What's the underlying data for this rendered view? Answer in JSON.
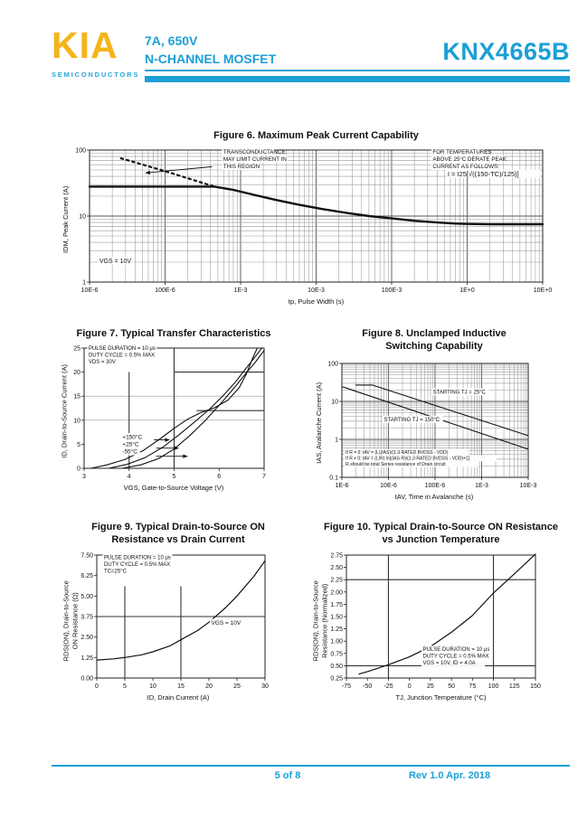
{
  "header": {
    "logo": "KIA",
    "logo_sub": "SEMICONDUCTORS",
    "spec_line1": "7A, 650V",
    "spec_line2": "N-CHANNEL MOSFET",
    "part_number": "KNX4665B"
  },
  "colors": {
    "accent_cyan": "#1B9FD6",
    "logo_yellow": "#F5B41A",
    "chart_ink": "#111111"
  },
  "footer": {
    "page": "5 of 8",
    "rev": "Rev 1.0 Apr. 2018"
  },
  "chart_data": [
    {
      "name": "fig6",
      "type": "line",
      "title": "Figure 6. Maximum Peak Current Capability",
      "xlabel": "tp, Pulse Width (s)",
      "ylabel": "IDM, Peak Current (A)",
      "xscale": "log",
      "yscale": "log",
      "xlim": [
        1e-05,
        10
      ],
      "ylim": [
        1,
        100
      ],
      "log_grid": true,
      "margins": {
        "l": 30,
        "r": 14,
        "t": 6,
        "b": 16
      },
      "xticks": [
        {
          "v": 1e-05,
          "label": "10E-6"
        },
        {
          "v": 0.0001,
          "label": "100E-6"
        },
        {
          "v": 0.001,
          "label": "1E-3"
        },
        {
          "v": 0.01,
          "label": "10E-3"
        },
        {
          "v": 0.1,
          "label": "100E-3"
        },
        {
          "v": 1,
          "label": "1E+0"
        },
        {
          "v": 10,
          "label": "10E+0"
        }
      ],
      "yticks": [
        {
          "v": 1,
          "label": "1"
        },
        {
          "v": 10,
          "label": "10"
        },
        {
          "v": 100,
          "label": "100"
        }
      ],
      "series": [
        {
          "name": "peak-current-limit",
          "width": 2.4,
          "points": [
            [
              1e-05,
              28
            ],
            [
              0.00045,
              28
            ],
            [
              0.0008,
              25
            ],
            [
              0.0015,
              21
            ],
            [
              0.003,
              17.5
            ],
            [
              0.006,
              14.8
            ],
            [
              0.012,
              12.8
            ],
            [
              0.025,
              11.2
            ],
            [
              0.05,
              10
            ],
            [
              0.1,
              9.2
            ],
            [
              0.2,
              8.5
            ],
            [
              0.4,
              8.0
            ],
            [
              0.7,
              7.7
            ],
            [
              1,
              7.6
            ],
            [
              2,
              7.5
            ],
            [
              10,
              7.5
            ]
          ]
        },
        {
          "name": "transconductance-limit",
          "width": 2.2,
          "dash": "2.5 4",
          "points": [
            [
              2.6e-05,
              75
            ],
            [
              0.0001,
              48
            ],
            [
              0.00045,
              28
            ]
          ]
        }
      ],
      "annotations": [
        {
          "x": 0.00059,
          "y": 88,
          "size": 6.2,
          "lh": 8,
          "lines": [
            "TRANSCONDUCTANCE",
            "MAY LIMIT CURRENT IN",
            "THIS REGION"
          ]
        },
        {
          "x": 0.35,
          "y": 88,
          "size": 6.2,
          "lh": 8,
          "lines": [
            "FOR TEMPERATURES",
            "ABOVE 25°C DERATE PEAK",
            "CURRENT AS FOLLOWS:"
          ]
        },
        {
          "x": 0.55,
          "y": 40,
          "size": 7.5,
          "lh": 9,
          "lines": [
            "I = I25[√((150-TC)/125)]"
          ]
        },
        {
          "x": 1.35e-05,
          "y": 1.95,
          "size": 7,
          "lh": 8,
          "lines": [
            "VGS = 10V"
          ]
        }
      ],
      "arrows": [
        {
          "x1": 0.00042,
          "y1": 56,
          "x2": 5.5e-05,
          "y2": 45
        }
      ]
    },
    {
      "name": "fig7",
      "type": "line",
      "title": "Figure 7. Typical Transfer Characteristics",
      "xlabel": "VGS, Gate-to-Source Voltage (V)",
      "ylabel": "ID, Drain-to-Source Current (A)",
      "xscale": "linear",
      "yscale": "linear",
      "xlim": [
        3,
        7
      ],
      "ylim": [
        0,
        25
      ],
      "log_grid": false,
      "margins": {
        "l": 26,
        "r": 10,
        "t": 6,
        "b": 16
      },
      "xticks": [
        {
          "v": 3,
          "label": "3"
        },
        {
          "v": 4,
          "label": "4"
        },
        {
          "v": 5,
          "label": "5"
        },
        {
          "v": 6,
          "label": "6"
        },
        {
          "v": 7,
          "label": "7"
        }
      ],
      "yticks": [
        {
          "v": 0,
          "label": "0"
        },
        {
          "v": 5,
          "label": "5"
        },
        {
          "v": 10,
          "label": "10"
        },
        {
          "v": 15,
          "label": "15"
        },
        {
          "v": 20,
          "label": "20"
        },
        {
          "v": 25,
          "label": "25"
        }
      ],
      "extra_lines": [
        {
          "x1": 3,
          "y1": 10,
          "x2": 7,
          "y2": 10,
          "w": "light"
        },
        {
          "x1": 3,
          "y1": 15,
          "x2": 7,
          "y2": 15,
          "w": "light"
        },
        {
          "x1": 5,
          "y1": 20,
          "x2": 7,
          "y2": 20,
          "w": "dark"
        },
        {
          "x1": 5.5,
          "y1": 12,
          "x2": 7,
          "y2": 12,
          "w": "dark"
        },
        {
          "x1": 4,
          "y1": 0,
          "x2": 4,
          "y2": 20,
          "w": "dark"
        },
        {
          "x1": 5,
          "y1": 0,
          "x2": 5,
          "y2": 25,
          "w": "dark"
        }
      ],
      "series": [
        {
          "name": "curve-150C",
          "width": 1.1,
          "points": [
            [
              3.15,
              0
            ],
            [
              3.5,
              0.7
            ],
            [
              3.9,
              1.8
            ],
            [
              4.3,
              3.6
            ],
            [
              4.7,
              6.2
            ],
            [
              5.0,
              8.3
            ],
            [
              5.3,
              10.2
            ],
            [
              5.6,
              11.6
            ],
            [
              5.9,
              12.6
            ],
            [
              6.2,
              14.2
            ],
            [
              6.45,
              16.8
            ],
            [
              6.6,
              19.5
            ],
            [
              6.75,
              23
            ],
            [
              6.85,
              25
            ]
          ]
        },
        {
          "name": "curve-25C",
          "width": 1.1,
          "points": [
            [
              3.55,
              0
            ],
            [
              3.95,
              0.8
            ],
            [
              4.35,
              2.2
            ],
            [
              4.75,
              4.4
            ],
            [
              5.1,
              6.9
            ],
            [
              5.45,
              9.6
            ],
            [
              5.8,
              12.4
            ],
            [
              6.1,
              15.2
            ],
            [
              6.35,
              17.8
            ],
            [
              6.55,
              20.2
            ],
            [
              6.75,
              22.6
            ],
            [
              6.95,
              25
            ]
          ]
        },
        {
          "name": "curve-minus55C",
          "width": 1.1,
          "points": [
            [
              3.85,
              0
            ],
            [
              4.25,
              0.7
            ],
            [
              4.65,
              2.0
            ],
            [
              5.0,
              4.0
            ],
            [
              5.35,
              6.8
            ],
            [
              5.7,
              10.0
            ],
            [
              6.05,
              13.6
            ],
            [
              6.35,
              16.9
            ],
            [
              6.6,
              19.8
            ],
            [
              6.8,
              22
            ],
            [
              7.0,
              24.5
            ]
          ]
        }
      ],
      "annotations": [
        {
          "x": 3.1,
          "y": 24.6,
          "size": 6,
          "lh": 7.5,
          "lines": [
            "PULSE DURATION = 10 μs",
            "DUTY CYCLE = 0.5% MAX",
            "VDS = 30V"
          ]
        },
        {
          "x": 3.85,
          "y": 6.1,
          "size": 6.5,
          "lh": 8,
          "lines": [
            "+150°C",
            "+25°C",
            "-55°C"
          ]
        }
      ],
      "arrows": [
        {
          "x1": 4.55,
          "y1": 5.9,
          "x2": 4.9,
          "y2": 5.9
        },
        {
          "x1": 4.6,
          "y1": 4.2,
          "x2": 5.1,
          "y2": 4.2
        },
        {
          "x1": 4.6,
          "y1": 2.5,
          "x2": 5.3,
          "y2": 2.5
        }
      ]
    },
    {
      "name": "fig8",
      "type": "line",
      "title": "Figure 8.    Unclamped Inductive\nSwitching Capability",
      "xlabel": "tAV, Time in Avalanche (s)",
      "ylabel": "IAS, Avalanche Current (A)",
      "xscale": "log",
      "yscale": "log",
      "xlim": [
        1e-06,
        0.01
      ],
      "ylim": [
        0.1,
        100
      ],
      "log_grid": true,
      "margins": {
        "l": 30,
        "r": 14,
        "t": 8,
        "b": 16
      },
      "xticks": [
        {
          "v": 1e-06,
          "label": "1E-6"
        },
        {
          "v": 1e-05,
          "label": "10E-6"
        },
        {
          "v": 0.0001,
          "label": "100E-6"
        },
        {
          "v": 0.001,
          "label": "1E-3"
        },
        {
          "v": 0.01,
          "label": "10E-3"
        }
      ],
      "yticks": [
        {
          "v": 0.1,
          "label": "0.1"
        },
        {
          "v": 1,
          "label": "1"
        },
        {
          "v": 10,
          "label": "10"
        },
        {
          "v": 100,
          "label": "100"
        }
      ],
      "series": [
        {
          "name": "avalanche-25C",
          "width": 1.1,
          "points": [
            [
              2e-06,
              27
            ],
            [
              4.5e-06,
              27
            ],
            [
              0.01,
              1.25
            ]
          ]
        },
        {
          "name": "avalanche-150C",
          "width": 1.1,
          "points": [
            [
              1.05e-06,
              24
            ],
            [
              0.01,
              0.55
            ]
          ]
        }
      ],
      "annotations": [
        {
          "x": 9e-05,
          "y": 16,
          "size": 6,
          "lh": 8,
          "lines": [
            "STARTING TJ = 25°C"
          ]
        },
        {
          "x": 8e-06,
          "y": 3.0,
          "size": 6,
          "lh": 8,
          "lines": [
            "STARTING TJ = 150°C"
          ]
        },
        {
          "x": 1.2e-06,
          "y": 0.42,
          "size": 5,
          "lh": 6.5,
          "lines": [
            "If R = 0: tAV = (L)(IAS)/(1.3·RATED BVDSS - VDD)",
            "If R ≠ 0: tAV = (L/R) ln[(IAS·R)/(1.3·RATED BVDSS - VDD)+1]",
            "R should be total Series resistance of Drain circuit"
          ]
        }
      ]
    },
    {
      "name": "fig9",
      "type": "line",
      "title": "Figure 9.   Typical Drain-to-Source ON\nResistance vs Drain Current",
      "xlabel": "ID, Drain Current (A)",
      "ylabel": "RDS(ON), Drain-to-Source\nON Resistance (Ω)",
      "xscale": "linear",
      "yscale": "linear",
      "xlim": [
        0,
        30
      ],
      "ylim": [
        0,
        7.5
      ],
      "log_grid": false,
      "margins": {
        "l": 34,
        "r": 10,
        "t": 6,
        "b": 16
      },
      "xticks": [
        {
          "v": 0,
          "label": "0"
        },
        {
          "v": 5,
          "label": "5"
        },
        {
          "v": 10,
          "label": "10"
        },
        {
          "v": 15,
          "label": "15"
        },
        {
          "v": 20,
          "label": "20"
        },
        {
          "v": 25,
          "label": "25"
        },
        {
          "v": 30,
          "label": "30"
        }
      ],
      "yticks": [
        {
          "v": 0,
          "label": "0.00"
        },
        {
          "v": 1.25,
          "label": "1.25"
        },
        {
          "v": 2.5,
          "label": "2.50"
        },
        {
          "v": 3.75,
          "label": "3.75"
        },
        {
          "v": 5,
          "label": "5.00"
        },
        {
          "v": 6.25,
          "label": "6.25"
        },
        {
          "v": 7.5,
          "label": "7.50"
        }
      ],
      "extra_lines": [
        {
          "x1": 5,
          "y1": 0,
          "x2": 5,
          "y2": 5.6,
          "w": "dark"
        },
        {
          "x1": 15,
          "y1": 0,
          "x2": 15,
          "y2": 5.6,
          "w": "dark"
        },
        {
          "x1": 0,
          "y1": 3.75,
          "x2": 30,
          "y2": 3.75,
          "w": "dark"
        }
      ],
      "series": [
        {
          "name": "rdson-vs-id",
          "width": 1.2,
          "points": [
            [
              0,
              1.1
            ],
            [
              3,
              1.17
            ],
            [
              5,
              1.25
            ],
            [
              8,
              1.42
            ],
            [
              10,
              1.6
            ],
            [
              13,
              1.95
            ],
            [
              15,
              2.33
            ],
            [
              18,
              2.9
            ],
            [
              20,
              3.4
            ],
            [
              23,
              4.3
            ],
            [
              25,
              5.0
            ],
            [
              28,
              6.2
            ],
            [
              30,
              7.15
            ]
          ]
        }
      ],
      "annotations": [
        {
          "x": 1.3,
          "y": 7.25,
          "size": 6,
          "lh": 7.5,
          "lines": [
            "PULSE DURATION = 10 μs",
            "DUTY CYCLE = 0.5% MAX",
            "TC=25°C"
          ]
        },
        {
          "x": 20.4,
          "y": 3.25,
          "size": 6.5,
          "lh": 8,
          "lines": [
            "VGS = 10V"
          ]
        }
      ]
    },
    {
      "name": "fig10",
      "type": "line",
      "title": "Figure 10.  Typical Drain-to-Source ON Resistance\nvs Junction Temperature",
      "xlabel": "TJ, Junction Temperature (°C)",
      "ylabel": "RDS(ON), Drain-to-Source\nResistance (Normalized)",
      "xscale": "linear",
      "yscale": "linear",
      "xlim": [
        -75,
        150
      ],
      "ylim": [
        0.25,
        2.75
      ],
      "log_grid": false,
      "margins": {
        "l": 34,
        "r": 12,
        "t": 6,
        "b": 16
      },
      "xticks": [
        {
          "v": -75,
          "label": "-75"
        },
        {
          "v": -50,
          "label": "-50"
        },
        {
          "v": -25,
          "label": "-25"
        },
        {
          "v": 0,
          "label": "0"
        },
        {
          "v": 25,
          "label": "25"
        },
        {
          "v": 50,
          "label": "50"
        },
        {
          "v": 75,
          "label": "75"
        },
        {
          "v": 100,
          "label": "100"
        },
        {
          "v": 125,
          "label": "125"
        },
        {
          "v": 150,
          "label": "150"
        }
      ],
      "yticks": [
        {
          "v": 0.25,
          "label": "0.25"
        },
        {
          "v": 0.5,
          "label": "0.50"
        },
        {
          "v": 0.75,
          "label": "0.75"
        },
        {
          "v": 1.0,
          "label": "1.00"
        },
        {
          "v": 1.25,
          "label": "1.25"
        },
        {
          "v": 1.5,
          "label": "1.50"
        },
        {
          "v": 1.75,
          "label": "1.75"
        },
        {
          "v": 2.0,
          "label": "2.00"
        },
        {
          "v": 2.25,
          "label": "2.25"
        },
        {
          "v": 2.5,
          "label": "2.50"
        },
        {
          "v": 2.75,
          "label": "2.75"
        }
      ],
      "extra_lines": [
        {
          "x1": -25,
          "y1": 0.25,
          "x2": -25,
          "y2": 2.75,
          "w": "dark"
        },
        {
          "x1": 100,
          "y1": 0.25,
          "x2": 100,
          "y2": 2.75,
          "w": "dark"
        },
        {
          "x1": -75,
          "y1": 0.5,
          "x2": 150,
          "y2": 0.5,
          "w": "dark"
        },
        {
          "x1": -75,
          "y1": 2.25,
          "x2": 150,
          "y2": 2.25,
          "w": "dark"
        }
      ],
      "series": [
        {
          "name": "rdson-vs-tj",
          "width": 1.2,
          "points": [
            [
              -60,
              0.33
            ],
            [
              -50,
              0.38
            ],
            [
              -25,
              0.52
            ],
            [
              0,
              0.68
            ],
            [
              25,
              0.89
            ],
            [
              50,
              1.18
            ],
            [
              75,
              1.52
            ],
            [
              100,
              1.98
            ],
            [
              125,
              2.37
            ],
            [
              150,
              2.77
            ]
          ]
        }
      ],
      "annotations": [
        {
          "x": 16,
          "y": 0.8,
          "size": 6,
          "lh": 7.5,
          "lines": [
            "PULSE DURATION = 10 μs",
            "DUTY CYCLE = 0.5% MAX",
            "VGS = 10V, ID = 4.0A"
          ]
        }
      ]
    }
  ]
}
